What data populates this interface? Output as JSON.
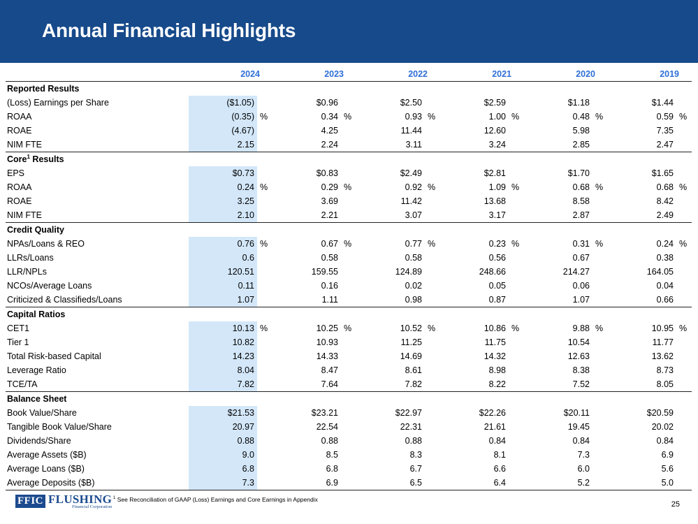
{
  "title": "Annual Financial Highlights",
  "years": [
    "2024",
    "2023",
    "2022",
    "2021",
    "2020",
    "2019"
  ],
  "sections": [
    {
      "name": "Reported Results",
      "sup": "",
      "name_suffix": "",
      "rows": [
        {
          "label": "(Loss) Earnings per Share",
          "values": [
            "($1.05)",
            "$0.96",
            "$2.50",
            "$2.59",
            "$1.18",
            "$1.44"
          ],
          "unit": ""
        },
        {
          "label": "ROAA",
          "values": [
            "(0.35)",
            "0.34",
            "0.93",
            "1.00",
            "0.48",
            "0.59"
          ],
          "unit": "%"
        },
        {
          "label": "ROAE",
          "values": [
            "(4.67)",
            "4.25",
            "11.44",
            "12.60",
            "5.98",
            "7.35"
          ],
          "unit": ""
        },
        {
          "label": "NIM FTE",
          "values": [
            "2.15",
            "2.24",
            "3.11",
            "3.24",
            "2.85",
            "2.47"
          ],
          "unit": ""
        }
      ]
    },
    {
      "name": "Core",
      "sup": "1",
      "name_suffix": " Results",
      "rows": [
        {
          "label": "EPS",
          "values": [
            "$0.73",
            "$0.83",
            "$2.49",
            "$2.81",
            "$1.70",
            "$1.65"
          ],
          "unit": ""
        },
        {
          "label": "ROAA",
          "values": [
            "0.24",
            "0.29",
            "0.92",
            "1.09",
            "0.68",
            "0.68"
          ],
          "unit": "%"
        },
        {
          "label": "ROAE",
          "values": [
            "3.25",
            "3.69",
            "11.42",
            "13.68",
            "8.58",
            "8.42"
          ],
          "unit": ""
        },
        {
          "label": "NIM FTE",
          "values": [
            "2.10",
            "2.21",
            "3.07",
            "3.17",
            "2.87",
            "2.49"
          ],
          "unit": ""
        }
      ]
    },
    {
      "name": "Credit Quality",
      "sup": "",
      "name_suffix": "",
      "rows": [
        {
          "label": "NPAs/Loans & REO",
          "values": [
            "0.76",
            "0.67",
            "0.77",
            "0.23",
            "0.31",
            "0.24"
          ],
          "unit": "%"
        },
        {
          "label": "LLRs/Loans",
          "values": [
            "0.6",
            "0.58",
            "0.58",
            "0.56",
            "0.67",
            "0.38"
          ],
          "unit": ""
        },
        {
          "label": "LLR/NPLs",
          "values": [
            "120.51",
            "159.55",
            "124.89",
            "248.66",
            "214.27",
            "164.05"
          ],
          "unit": ""
        },
        {
          "label": "NCOs/Average Loans",
          "values": [
            "0.11",
            "0.16",
            "0.02",
            "0.05",
            "0.06",
            "0.04"
          ],
          "unit": ""
        },
        {
          "label": "Criticized & Classifieds/Loans",
          "values": [
            "1.07",
            "1.11",
            "0.98",
            "0.87",
            "1.07",
            "0.66"
          ],
          "unit": ""
        }
      ]
    },
    {
      "name": "Capital Ratios",
      "sup": "",
      "name_suffix": "",
      "rows": [
        {
          "label": "CET1",
          "values": [
            "10.13",
            "10.25",
            "10.52",
            "10.86",
            "9.88",
            "10.95"
          ],
          "unit": "%"
        },
        {
          "label": "Tier 1",
          "values": [
            "10.82",
            "10.93",
            "11.25",
            "11.75",
            "10.54",
            "11.77"
          ],
          "unit": ""
        },
        {
          "label": "Total Risk-based Capital",
          "values": [
            "14.23",
            "14.33",
            "14.69",
            "14.32",
            "12.63",
            "13.62"
          ],
          "unit": ""
        },
        {
          "label": "Leverage Ratio",
          "values": [
            "8.04",
            "8.47",
            "8.61",
            "8.98",
            "8.38",
            "8.73"
          ],
          "unit": ""
        },
        {
          "label": "TCE/TA",
          "values": [
            "7.82",
            "7.64",
            "7.82",
            "8.22",
            "7.52",
            "8.05"
          ],
          "unit": ""
        }
      ]
    },
    {
      "name": "Balance Sheet",
      "sup": "",
      "name_suffix": "",
      "rows": [
        {
          "label": "Book Value/Share",
          "values": [
            "$21.53",
            "$23.21",
            "$22.97",
            "$22.26",
            "$20.11",
            "$20.59"
          ],
          "unit": ""
        },
        {
          "label": "Tangible Book Value/Share",
          "values": [
            "20.97",
            "22.54",
            "22.31",
            "21.61",
            "19.45",
            "20.02"
          ],
          "unit": ""
        },
        {
          "label": "Dividends/Share",
          "values": [
            "0.88",
            "0.88",
            "0.88",
            "0.84",
            "0.84",
            "0.84"
          ],
          "unit": ""
        },
        {
          "label": "Average Assets ($B)",
          "values": [
            "9.0",
            "8.5",
            "8.3",
            "8.1",
            "7.3",
            "6.9"
          ],
          "unit": ""
        },
        {
          "label": "Average Loans ($B)",
          "values": [
            "6.8",
            "6.8",
            "6.7",
            "6.6",
            "6.0",
            "5.6"
          ],
          "unit": ""
        },
        {
          "label": "Average Deposits ($B)",
          "values": [
            "7.3",
            "6.9",
            "6.5",
            "6.4",
            "5.2",
            "5.0"
          ],
          "unit": ""
        }
      ]
    }
  ],
  "footer": {
    "logo_mark": "FFIC",
    "logo_name": "FLUSHING",
    "logo_sub": "Financial Corporation",
    "footnote_marker": "1",
    "footnote": "See Reconciliation of GAAP (Loss) Earnings and Core Earnings in Appendix",
    "page_number": "25"
  }
}
